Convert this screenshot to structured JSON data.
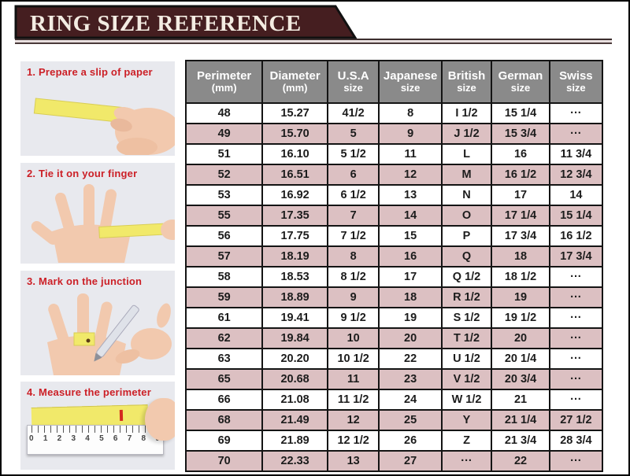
{
  "title": "RING SIZE REFERENCE",
  "steps": [
    {
      "caption": "1. Prepare a slip of paper"
    },
    {
      "caption": "2. Tie it on your finger"
    },
    {
      "caption": "3. Mark on the junction"
    },
    {
      "caption": "4. Measure the perimeter"
    }
  ],
  "ruler_numbers": [
    "0",
    "1",
    "2",
    "3",
    "4",
    "5",
    "6",
    "7",
    "8",
    "9"
  ],
  "table": {
    "header": [
      [
        "Perimeter",
        "(mm)"
      ],
      [
        "Diameter",
        "(mm)"
      ],
      [
        "U.S.A",
        "size"
      ],
      [
        "Japanese",
        "size"
      ],
      [
        "British",
        "size"
      ],
      [
        "German",
        "size"
      ],
      [
        "Swiss",
        "size"
      ]
    ]
  },
  "chart_data": {
    "type": "table",
    "title": "RING SIZE REFERENCE",
    "columns": [
      "Perimeter (mm)",
      "Diameter (mm)",
      "U.S.A size",
      "Japanese size",
      "British size",
      "German size",
      "Swiss size"
    ],
    "rows": [
      [
        "48",
        "15.27",
        "41/2",
        "8",
        "I 1/2",
        "15 1/4",
        "···"
      ],
      [
        "49",
        "15.70",
        "5",
        "9",
        "J 1/2",
        "15 3/4",
        "···"
      ],
      [
        "51",
        "16.10",
        "5 1/2",
        "11",
        "L",
        "16",
        "11 3/4"
      ],
      [
        "52",
        "16.51",
        "6",
        "12",
        "M",
        "16 1/2",
        "12 3/4"
      ],
      [
        "53",
        "16.92",
        "6 1/2",
        "13",
        "N",
        "17",
        "14"
      ],
      [
        "55",
        "17.35",
        "7",
        "14",
        "O",
        "17 1/4",
        "15 1/4"
      ],
      [
        "56",
        "17.75",
        "7 1/2",
        "15",
        "P",
        "17 3/4",
        "16 1/2"
      ],
      [
        "57",
        "18.19",
        "8",
        "16",
        "Q",
        "18",
        "17 3/4"
      ],
      [
        "58",
        "18.53",
        "8 1/2",
        "17",
        "Q 1/2",
        "18 1/2",
        "···"
      ],
      [
        "59",
        "18.89",
        "9",
        "18",
        "R 1/2",
        "19",
        "···"
      ],
      [
        "61",
        "19.41",
        "9 1/2",
        "19",
        "S 1/2",
        "19 1/2",
        "···"
      ],
      [
        "62",
        "19.84",
        "10",
        "20",
        "T 1/2",
        "20",
        "···"
      ],
      [
        "63",
        "20.20",
        "10 1/2",
        "22",
        "U 1/2",
        "20 1/4",
        "···"
      ],
      [
        "65",
        "20.68",
        "11",
        "23",
        "V 1/2",
        "20 3/4",
        "···"
      ],
      [
        "66",
        "21.08",
        "11 1/2",
        "24",
        "W 1/2",
        "21",
        "···"
      ],
      [
        "68",
        "21.49",
        "12",
        "25",
        "Y",
        "21 1/4",
        "27 1/2"
      ],
      [
        "69",
        "21.89",
        "12 1/2",
        "26",
        "Z",
        "21 3/4",
        "28 3/4"
      ],
      [
        "70",
        "22.33",
        "13",
        "27",
        "···",
        "22",
        "···"
      ]
    ]
  },
  "colors": {
    "banner": "#451e20",
    "caption_red": "#cc2027",
    "header_gray": "#8a8a8a",
    "row_pink": "#dcc0c2",
    "paper_yellow": "#f1e96a",
    "border_black": "#141414"
  }
}
